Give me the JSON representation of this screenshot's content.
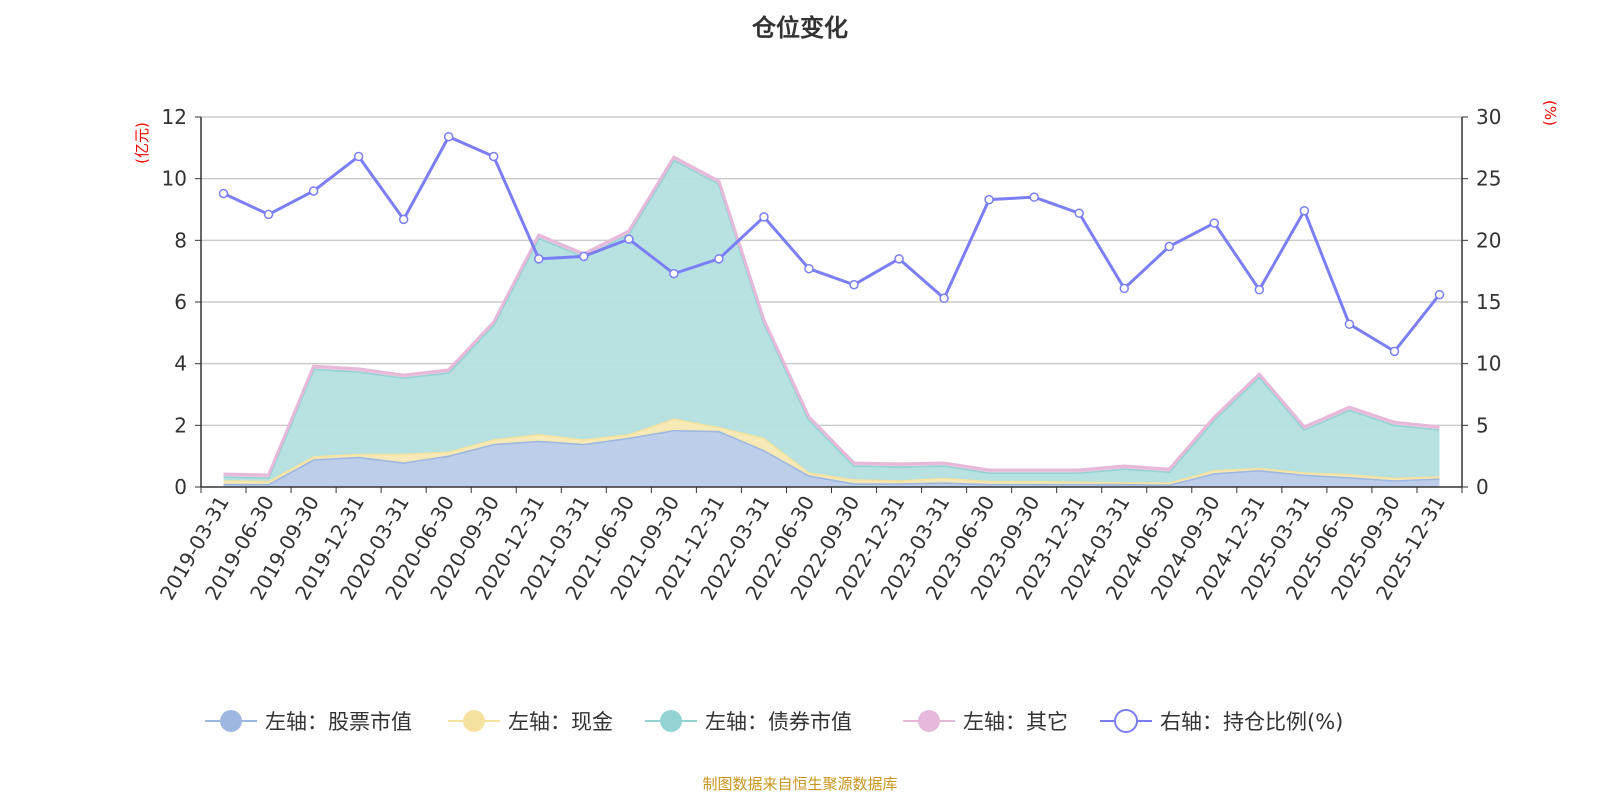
{
  "chart_data": {
    "type": "area",
    "title": "仓位变化",
    "source": "制图数据来自恒生聚源数据库",
    "ylabel_left": "(亿元)",
    "ylabel_right": "(%)",
    "ylim_left": [
      0,
      12
    ],
    "ylim_right": [
      0,
      30
    ],
    "yticks_left": [
      0,
      2,
      4,
      6,
      8,
      10,
      12
    ],
    "yticks_right": [
      0,
      5,
      10,
      15,
      20,
      25,
      30
    ],
    "grid": true,
    "legend_position": "bottom",
    "categories": [
      "2019-03-31",
      "2019-06-30",
      "2019-09-30",
      "2019-12-31",
      "2020-03-31",
      "2020-06-30",
      "2020-09-30",
      "2020-12-31",
      "2021-03-31",
      "2021-06-30",
      "2021-09-30",
      "2021-12-31",
      "2022-03-31",
      "2022-06-30",
      "2022-09-30",
      "2022-12-31",
      "2023-03-31",
      "2023-06-30",
      "2023-09-30",
      "2023-12-31",
      "2024-03-31",
      "2024-06-30",
      "2024-09-30",
      "2024-12-31",
      "2025-03-31",
      "2025-06-30",
      "2025-09-30",
      "2025-12-31"
    ],
    "series": [
      {
        "name": "左轴：股票市值",
        "axis": "left",
        "stacked": true,
        "color": "#9db7e0",
        "fill": "#b8cbe9",
        "values": [
          0.1,
          0.1,
          0.9,
          0.98,
          0.8,
          1.02,
          1.4,
          1.5,
          1.4,
          1.6,
          1.85,
          1.82,
          1.2,
          0.38,
          0.12,
          0.12,
          0.15,
          0.1,
          0.1,
          0.1,
          0.1,
          0.08,
          0.45,
          0.55,
          0.4,
          0.32,
          0.22,
          0.28
        ]
      },
      {
        "name": "左轴：现金",
        "axis": "left",
        "stacked": true,
        "color": "#f5e2a0",
        "fill": "#f7e9b3",
        "values": [
          0.12,
          0.1,
          0.1,
          0.1,
          0.28,
          0.13,
          0.15,
          0.22,
          0.15,
          0.12,
          0.37,
          0.13,
          0.4,
          0.1,
          0.13,
          0.1,
          0.15,
          0.1,
          0.1,
          0.08,
          0.06,
          0.07,
          0.1,
          0.07,
          0.08,
          0.1,
          0.08,
          0.07
        ]
      },
      {
        "name": "左轴：债券市值",
        "axis": "left",
        "stacked": true,
        "color": "#93d3d3",
        "fill": "#b4e0e0",
        "values": [
          0.12,
          0.11,
          2.84,
          2.67,
          2.47,
          2.57,
          3.72,
          6.37,
          5.93,
          6.5,
          8.4,
          7.89,
          3.74,
          1.71,
          0.45,
          0.45,
          0.4,
          0.27,
          0.27,
          0.29,
          0.44,
          0.35,
          1.64,
          2.96,
          1.39,
          2.09,
          1.72,
          1.52
        ]
      },
      {
        "name": "左轴：其它",
        "axis": "left",
        "stacked": true,
        "color": "#e6b8da",
        "fill": "#ecc9e3",
        "values": [
          0.08,
          0.08,
          0.08,
          0.08,
          0.08,
          0.08,
          0.08,
          0.08,
          0.08,
          0.08,
          0.08,
          0.08,
          0.08,
          0.08,
          0.08,
          0.08,
          0.08,
          0.08,
          0.08,
          0.08,
          0.08,
          0.08,
          0.08,
          0.08,
          0.08,
          0.08,
          0.08,
          0.08
        ]
      },
      {
        "name": "右轴：持仓比例(%)",
        "axis": "right",
        "type": "line",
        "color": "#7b7ff5",
        "values": [
          23.8,
          22.1,
          24.0,
          26.8,
          21.7,
          28.4,
          26.8,
          18.5,
          18.7,
          20.1,
          17.3,
          18.5,
          21.9,
          17.7,
          16.4,
          18.5,
          15.3,
          23.3,
          23.5,
          22.2,
          16.1,
          19.5,
          21.4,
          16.0,
          22.4,
          13.2,
          11.0,
          15.6
        ]
      }
    ]
  }
}
